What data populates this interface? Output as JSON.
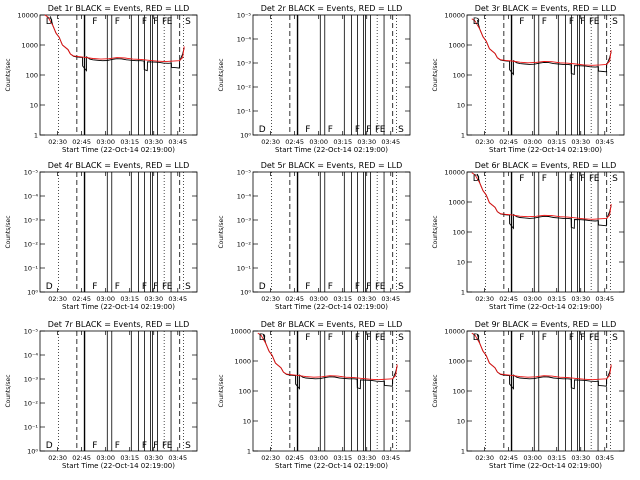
{
  "chart_data": {
    "common": {
      "type": "line",
      "xlabel": "Start Time (22-Oct-14 02:19:00)",
      "ylabel": "Counts/sec",
      "x_tick_labels": [
        "02:30",
        "02:45",
        "03:00",
        "03:15",
        "03:30",
        "03:45"
      ],
      "x_tick_minutes": [
        30,
        45,
        60,
        75,
        90,
        105
      ],
      "xlim_minutes": [
        19,
        117
      ],
      "series_colors": {
        "events": "#000000",
        "lld": "#ee1111"
      },
      "ylim": [
        1,
        10000
      ],
      "y_tick_values": [
        1,
        10,
        100,
        1000,
        10000
      ],
      "y_tick_labels_normal": [
        "1",
        "10",
        "100",
        "1000",
        "10000"
      ],
      "y_tick_labels_empty": [
        "10⁰",
        "10⁻¹",
        "10⁻²",
        "10⁻³",
        "10⁻⁴",
        "10⁻⁵"
      ],
      "events_profile": [
        [
          25.5,
          9000
        ],
        [
          27,
          4500
        ],
        [
          29,
          2500
        ],
        [
          31,
          1800
        ],
        [
          33,
          1000
        ],
        [
          36.5,
          700
        ],
        [
          38,
          500
        ],
        [
          40,
          420
        ],
        [
          42,
          400
        ],
        [
          44,
          390
        ],
        [
          45.5,
          385
        ],
        [
          45.6,
          200
        ],
        [
          48,
          140
        ],
        [
          48.1,
          400
        ],
        [
          50,
          340
        ],
        [
          52,
          320
        ],
        [
          55,
          310
        ],
        [
          58,
          300
        ],
        [
          61,
          305
        ],
        [
          64,
          330
        ],
        [
          67,
          350
        ],
        [
          70,
          345
        ],
        [
          73,
          320
        ],
        [
          76,
          310
        ],
        [
          79,
          300
        ],
        [
          82,
          300
        ],
        [
          84,
          290
        ],
        [
          84.1,
          150
        ],
        [
          86,
          140
        ],
        [
          86.1,
          275
        ],
        [
          90,
          270
        ],
        [
          93,
          265
        ],
        [
          96,
          250
        ],
        [
          99,
          245
        ],
        [
          101,
          250
        ],
        [
          101.1,
          180
        ],
        [
          104,
          175
        ],
        [
          106,
          170
        ],
        [
          106.1,
          280
        ],
        [
          108,
          500
        ],
        [
          109,
          800
        ]
      ],
      "lld_profile": [
        [
          22,
          10000
        ],
        [
          24,
          8500
        ],
        [
          27,
          4500
        ],
        [
          29,
          2500
        ],
        [
          31,
          1800
        ],
        [
          33,
          1000
        ],
        [
          36.5,
          700
        ],
        [
          38,
          500
        ],
        [
          40,
          430
        ],
        [
          43,
          410
        ],
        [
          47,
          390
        ],
        [
          52,
          355
        ],
        [
          57,
          340
        ],
        [
          62,
          350
        ],
        [
          67,
          380
        ],
        [
          72,
          370
        ],
        [
          77,
          340
        ],
        [
          82,
          330
        ],
        [
          87,
          310
        ],
        [
          92,
          290
        ],
        [
          97,
          280
        ],
        [
          102,
          290
        ],
        [
          106,
          300
        ],
        [
          108,
          380
        ],
        [
          109,
          900
        ]
      ],
      "dotted_lines_minutes": [
        30.5,
        96.5,
        108.5
      ],
      "dashed_lines_minutes": [
        42,
        106.2
      ],
      "solid_lines_minutes": [
        46.8,
        61,
        63.8,
        76,
        80.5,
        84.3,
        88,
        89.2,
        92.3,
        100.8
      ],
      "flag_labels": [
        {
          "x": 22,
          "text": "D"
        },
        {
          "x": 51,
          "text": "F"
        },
        {
          "x": 65,
          "text": "F"
        },
        {
          "x": 82,
          "text": "F"
        },
        {
          "x": 89,
          "text": "F"
        },
        {
          "x": 94.5,
          "text": "F"
        },
        {
          "x": 97.5,
          "text": "E"
        },
        {
          "x": 109,
          "text": "S"
        }
      ]
    },
    "panels": [
      {
        "title": "Det 1r BLACK = Events, RED = LLD",
        "has_data": true,
        "y_scale": 1.0
      },
      {
        "title": "Det 2r BLACK = Events, RED = LLD",
        "has_data": false
      },
      {
        "title": "Det 3r BLACK = Events, RED = LLD",
        "has_data": true,
        "y_scale": 0.75
      },
      {
        "title": "Det 4r BLACK = Events, RED = LLD",
        "has_data": false
      },
      {
        "title": "Det 5r BLACK = Events, RED = LLD",
        "has_data": false
      },
      {
        "title": "Det 6r BLACK = Events, RED = LLD",
        "has_data": true,
        "y_scale": 0.95
      },
      {
        "title": "Det 7r BLACK = Events, RED = LLD",
        "has_data": false
      },
      {
        "title": "Det 8r BLACK = Events, RED = LLD",
        "has_data": true,
        "y_scale": 0.85
      },
      {
        "title": "Det 9r BLACK = Events, RED = LLD",
        "has_data": true,
        "y_scale": 0.85
      }
    ]
  }
}
